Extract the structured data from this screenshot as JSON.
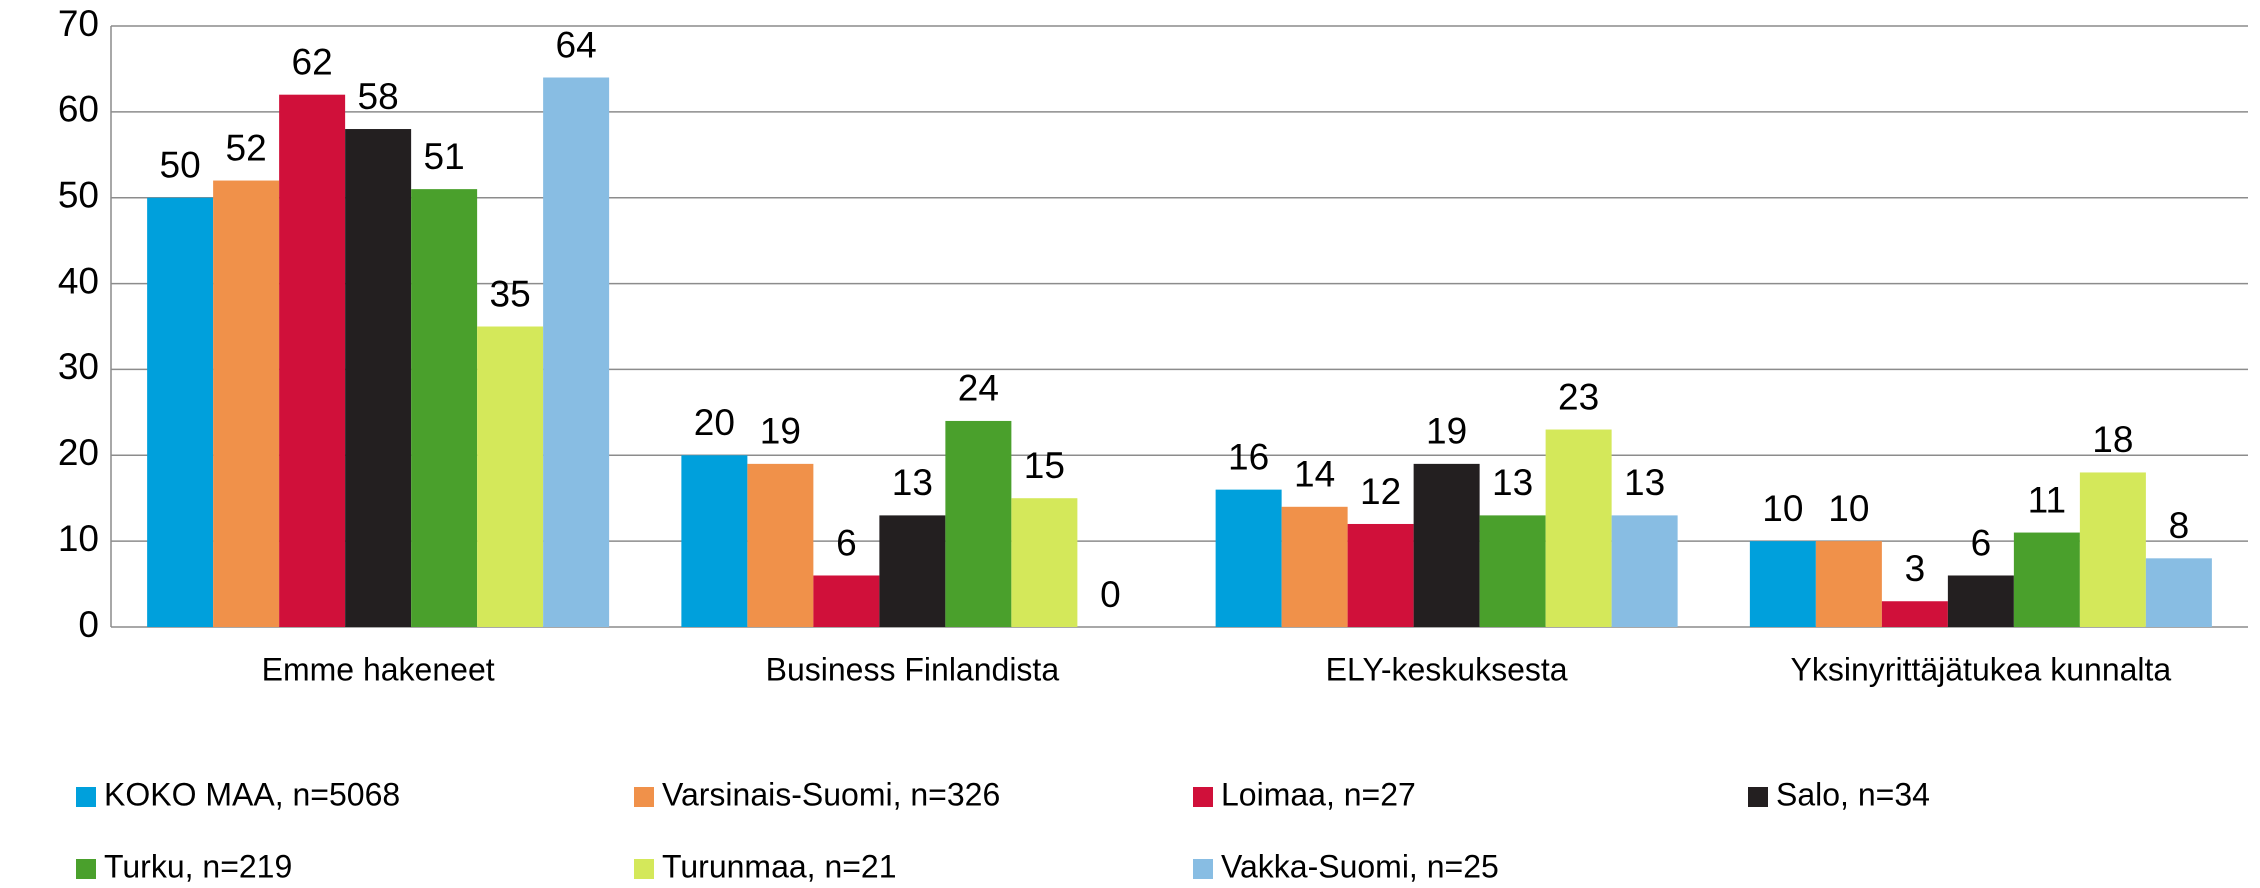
{
  "chart_data": {
    "type": "bar",
    "categories": [
      "Emme hakeneet",
      "Business Finlandista",
      "ELY-keskuksesta",
      "Yksinyrittäjätukea kunnalta"
    ],
    "series": [
      {
        "name": "KOKO MAA, n=5068",
        "color": "#00a0dc",
        "values": [
          50,
          20,
          16,
          10
        ]
      },
      {
        "name": "Varsinais-Suomi, n=326",
        "color": "#f0914a",
        "values": [
          52,
          19,
          14,
          10
        ]
      },
      {
        "name": "Loimaa, n=27",
        "color": "#d0103a",
        "values": [
          62,
          6,
          12,
          3
        ]
      },
      {
        "name": "Salo, n=34",
        "color": "#231f20",
        "values": [
          58,
          13,
          19,
          6
        ]
      },
      {
        "name": "Turku, n=219",
        "color": "#4aa02c",
        "values": [
          51,
          24,
          13,
          11
        ]
      },
      {
        "name": "Turunmaa, n=21",
        "color": "#d4e85a",
        "values": [
          35,
          15,
          23,
          18
        ]
      },
      {
        "name": "Vakka-Suomi, n=25",
        "color": "#88bde3",
        "values": [
          64,
          0,
          13,
          8
        ]
      }
    ],
    "ylim": [
      0,
      70
    ],
    "yticks": [
      0,
      10,
      20,
      30,
      40,
      50,
      60,
      70
    ],
    "grid": true
  }
}
